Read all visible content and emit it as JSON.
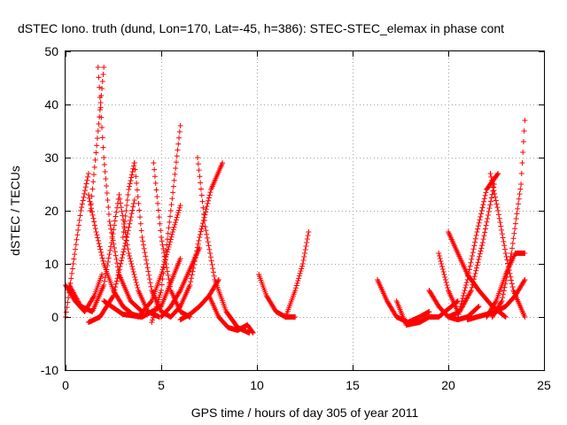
{
  "chart_data": {
    "type": "scatter",
    "title": "dSTEC Iono. truth (dund, Lon=170, Lat=-45, h=386): STEC-STEC_elemax in phase cont",
    "xlabel": "GPS time / hours of day 305 of year 2011",
    "ylabel": "dSTEC  / TECUs",
    "xlim": [
      0,
      25
    ],
    "ylim": [
      -10,
      50
    ],
    "xticks": [
      0,
      5,
      10,
      15,
      20,
      25
    ],
    "yticks": [
      -10,
      0,
      10,
      20,
      30,
      40,
      50
    ],
    "grid": true,
    "marker": "plus",
    "color": "#ff0000",
    "series": [
      {
        "x": [
          0.0,
          0.5,
          1.0,
          1.5,
          1.9
        ],
        "y": [
          6,
          3,
          1,
          4,
          8
        ]
      },
      {
        "x": [
          0.0,
          0.4,
          0.8,
          1.2
        ],
        "y": [
          0,
          10,
          20,
          27
        ]
      },
      {
        "x": [
          1.2,
          1.6,
          2.0,
          2.5,
          3.0,
          3.5,
          4.0
        ],
        "y": [
          23,
          16,
          10,
          5,
          2,
          0.5,
          0
        ]
      },
      {
        "x": [
          1.3,
          1.7,
          2.0
        ],
        "y": [
          20,
          35,
          47
        ]
      },
      {
        "x": [
          1.7,
          2.0,
          2.3,
          2.8,
          3.4,
          4.0
        ],
        "y": [
          47,
          30,
          18,
          8,
          3,
          1
        ]
      },
      {
        "x": [
          1.2,
          1.8,
          2.5,
          3.2,
          3.6
        ],
        "y": [
          -1,
          0,
          4,
          15,
          22
        ]
      },
      {
        "x": [
          0.2,
          0.8,
          1.4,
          2.0,
          2.4,
          2.8
        ],
        "y": [
          6,
          2,
          1,
          6,
          14,
          23
        ]
      },
      {
        "x": [
          2.8,
          3.3,
          3.8,
          4.3,
          4.9
        ],
        "y": [
          23,
          12,
          5,
          1,
          0
        ]
      },
      {
        "x": [
          3.0,
          3.3,
          3.6
        ],
        "y": [
          15,
          24,
          29
        ]
      },
      {
        "x": [
          3.6,
          4.0,
          4.5,
          5.0,
          5.5
        ],
        "y": [
          29,
          15,
          5,
          1,
          0
        ]
      },
      {
        "x": [
          2.0,
          3.0,
          4.0,
          5.0,
          6.0
        ],
        "y": [
          3,
          0.5,
          0,
          2,
          11
        ]
      },
      {
        "x": [
          3.8,
          4.5,
          5.0,
          5.6,
          6.0
        ],
        "y": [
          0,
          3,
          8,
          16,
          21
        ]
      },
      {
        "x": [
          4.6,
          5.0,
          5.5,
          6.0,
          6.5
        ],
        "y": [
          29,
          15,
          5,
          1,
          0
        ]
      },
      {
        "x": [
          4.5,
          5.0,
          5.5,
          6.0
        ],
        "y": [
          -1,
          5,
          20,
          36
        ]
      },
      {
        "x": [
          5.5,
          6.0,
          6.5,
          7.0,
          7.6,
          8.2
        ],
        "y": [
          0,
          2,
          6,
          15,
          24,
          29
        ]
      },
      {
        "x": [
          5.0,
          5.5,
          6.0,
          6.5,
          7.0
        ],
        "y": [
          0,
          2,
          5,
          9,
          13
        ]
      },
      {
        "x": [
          6.0,
          6.5,
          7.0,
          7.5,
          8.0
        ],
        "y": [
          -0.5,
          0.5,
          2,
          4,
          7
        ]
      },
      {
        "x": [
          6.9,
          7.3,
          7.8,
          8.4,
          9.0,
          9.6
        ],
        "y": [
          30,
          17,
          7,
          1,
          -2,
          -3
        ]
      },
      {
        "x": [
          7.5,
          8.0,
          8.5,
          9.0,
          9.5,
          9.8
        ],
        "y": [
          4,
          0,
          -2,
          -2.5,
          -1.5,
          -3
        ]
      },
      {
        "x": [
          10.1,
          10.5,
          11.0,
          11.5,
          12.0
        ],
        "y": [
          8,
          4,
          1,
          0,
          0
        ]
      },
      {
        "x": [
          11.5,
          12.0,
          12.4,
          12.7
        ],
        "y": [
          0,
          5,
          10,
          16
        ]
      },
      {
        "x": [
          16.3,
          16.8,
          17.3,
          17.9,
          18.5,
          19.0
        ],
        "y": [
          7,
          3,
          0,
          -1,
          0,
          1
        ]
      },
      {
        "x": [
          17.3,
          17.8,
          18.5,
          19.0,
          19.5,
          20.5
        ],
        "y": [
          3,
          -1.5,
          -1,
          0,
          0,
          3
        ]
      },
      {
        "x": [
          19.0,
          19.5,
          20.0,
          20.5,
          21.0,
          21.6
        ],
        "y": [
          5,
          2,
          0,
          -0.5,
          0,
          2
        ]
      },
      {
        "x": [
          19.5,
          20.0,
          20.5
        ],
        "y": [
          12,
          5,
          1
        ]
      },
      {
        "x": [
          20.0,
          20.6,
          21.2,
          21.8,
          22.4
        ],
        "y": [
          0,
          1,
          5,
          14,
          25
        ]
      },
      {
        "x": [
          20.5,
          21.0,
          21.5,
          22.0,
          22.6
        ],
        "y": [
          0,
          7,
          16,
          24,
          27
        ]
      },
      {
        "x": [
          20.0,
          20.5,
          21.0,
          21.6,
          22.3,
          23.0
        ],
        "y": [
          16,
          12,
          8,
          5,
          2,
          0
        ]
      },
      {
        "x": [
          21.0,
          21.5,
          22.0,
          22.5,
          23.0,
          23.5,
          24.0
        ],
        "y": [
          -0.5,
          0,
          0.5,
          1,
          2,
          4,
          7
        ]
      },
      {
        "x": [
          22.2,
          22.6,
          23.0,
          23.4,
          24.0
        ],
        "y": [
          27,
          20,
          12,
          5,
          0
        ]
      },
      {
        "x": [
          22.3,
          22.8,
          23.3,
          23.8,
          24.0
        ],
        "y": [
          0,
          3,
          12,
          25,
          37
        ]
      },
      {
        "x": [
          22.0,
          22.5,
          23.0,
          23.5,
          24.0
        ],
        "y": [
          0,
          3,
          8,
          12,
          12
        ]
      }
    ]
  }
}
